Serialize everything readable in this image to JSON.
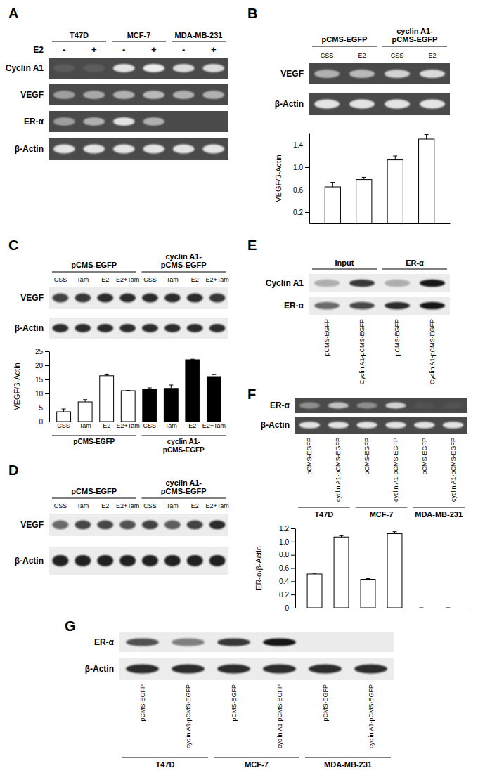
{
  "chart_data": [
    {
      "type": "bar",
      "ylabel": "VEGF/β-Actin",
      "categories": [
        null,
        null,
        null,
        null
      ],
      "values": [
        0.65,
        0.78,
        1.13,
        1.5
      ],
      "errors": [
        0.08,
        0.04,
        0.07,
        0.08
      ],
      "color": "#ffffff",
      "ylim": [
        0,
        1.6
      ],
      "yticks": [
        0.2,
        0.6,
        {
          "value": 1,
          "label": "1.0"
        },
        1.4
      ],
      "tick_labels": "y"
    },
    {
      "type": "bar",
      "ylabel": "VEGF/β-Actin",
      "categories": [
        "CSS",
        "Tam",
        "E2",
        "E2+Tam",
        "CSS",
        "Tam",
        "E2",
        "E2+Tam"
      ],
      "groups": [
        [
          "pCMS-EGFP"
        ],
        [
          "cyclin A1-",
          "pCMS-EGFP"
        ]
      ],
      "values": [
        3.5,
        7,
        16.3,
        11,
        11.5,
        11.8,
        22,
        16
      ],
      "errors": [
        1,
        0.8,
        0.6,
        0.1,
        0.5,
        1.2,
        0.2,
        0.8
      ],
      "colors": [
        "#ffffff",
        "#ffffff",
        "#ffffff",
        "#ffffff",
        "#000000",
        "#000000",
        "#000000",
        "#000000"
      ],
      "ylim": [
        0,
        25
      ],
      "yticks": [
        0,
        5,
        10,
        15,
        20,
        25
      ]
    },
    {
      "type": "bar",
      "ylabel": "ER-α/β-Actin",
      "categories": [
        null,
        null,
        null,
        null,
        null,
        null
      ],
      "values": [
        0.51,
        1.07,
        0.43,
        1.12,
        0,
        0
      ],
      "errors": [
        0.01,
        0.02,
        0.01,
        0.03,
        0,
        0
      ],
      "color": "#ffffff",
      "ylim": [
        0,
        1.2
      ],
      "yticks": [
        0,
        0.2,
        0.4,
        0.6,
        0.8,
        {
          "value": 1,
          "label": "1.0"
        },
        1.2
      ],
      "tick_labels": "y"
    }
  ],
  "figure": {
    "panels": [
      {
        "letter": "A",
        "groups": [
          [
            "T47D"
          ],
          [
            "MCF-7"
          ],
          [
            "MDA-MB-231"
          ]
        ],
        "treatment": "E2",
        "lane_labels": [
          "-",
          "+",
          "-",
          "+",
          "-",
          "+"
        ],
        "rows": [
          {
            "label": "Cyclin A1",
            "bands": [
              0.1,
              0.1,
              0.9,
              0.95,
              0.85,
              0.85
            ]
          },
          {
            "label": "VEGF",
            "bands": [
              0.5,
              0.55,
              0.6,
              0.65,
              0.6,
              0.6
            ]
          },
          {
            "label": "ER-α",
            "bands": [
              0.5,
              0.6,
              0.9,
              0.6,
              0,
              0
            ]
          },
          {
            "label": "β-Actin",
            "bands": [
              0.9,
              0.9,
              0.9,
              0.9,
              0.9,
              0.9
            ]
          }
        ]
      },
      {
        "letter": "B",
        "groups": [
          [
            "pCMS-EGFP"
          ],
          [
            "cyclin A1-",
            "pCMS-EGFP"
          ]
        ],
        "lane_labels": [
          "CSS",
          "E2",
          "CSS",
          "E2"
        ],
        "rows": [
          {
            "label": "VEGF",
            "bands": [
              0.6,
              0.65,
              0.8,
              0.85
            ]
          },
          {
            "label": "β-Actin",
            "bands": [
              0.9,
              0.9,
              0.9,
              0.9
            ]
          }
        ]
      },
      {
        "letter": "C",
        "groups": [
          [
            "pCMS-EGFP"
          ],
          [
            "cyclin A1-",
            "pCMS-EGFP"
          ]
        ],
        "lane_labels": [
          "CSS",
          "Tam",
          "E2",
          "E2+Tam",
          "CSS",
          "Tam",
          "E2",
          "E2+Tam"
        ],
        "rows": [
          {
            "label": "VEGF",
            "bands": [
              0.8,
              0.85,
              0.9,
              0.9,
              0.9,
              0.9,
              0.9,
              0.85
            ]
          },
          {
            "label": "β-Actin",
            "bands": [
              0.9,
              0.9,
              0.9,
              0.9,
              0.9,
              0.9,
              0.9,
              0.9
            ]
          }
        ]
      },
      {
        "letter": "D",
        "groups": [
          [
            "pCMS-EGFP"
          ],
          [
            "cyclin A1-",
            "pCMS-EGFP"
          ]
        ],
        "lane_labels": [
          "CSS",
          "Tam",
          "E2",
          "E2+Tam",
          "CSS",
          "Tam",
          "E2",
          "E2+Tam"
        ],
        "rows": [
          {
            "label": "VEGF",
            "bands": [
              0.6,
              0.75,
              0.75,
              0.7,
              0.8,
              0.65,
              0.8,
              0.9
            ]
          },
          {
            "label": "β-Actin",
            "bands": [
              0.95,
              0.95,
              0.95,
              0.95,
              0.95,
              0.95,
              0.95,
              0.95
            ]
          }
        ]
      },
      {
        "letter": "E",
        "groups": [
          [
            "Input"
          ],
          [
            "ER-α"
          ]
        ],
        "lane_labels": [
          "pCMS-EGFP",
          "Cyclin A1-pCMS-EGFP",
          "pCMS-EGFP",
          "Cyclin A1-pCMS-EGFP"
        ],
        "rows": [
          {
            "label": "Cyclin A1",
            "bands": [
              0.3,
              0.85,
              0.3,
              1.0
            ]
          },
          {
            "label": "ER-α",
            "bands": [
              0.6,
              0.75,
              0.9,
              1.0
            ]
          }
        ]
      },
      {
        "letter": "F",
        "groups": [
          [
            "T47D"
          ],
          [
            "MCF-7"
          ],
          [
            "MDA-MB-231"
          ]
        ],
        "lane_labels": [
          "pCMS-EGFP",
          "cyclin A1-pCMS-EGFP",
          "pCMS-EGFP",
          "cyclin A1-pCMS-EGFP",
          "pCMS-EGFP",
          "cyclin A1-pCMS-EGFP"
        ],
        "rows": [
          {
            "label": "ER-α",
            "bands": [
              0.4,
              0.7,
              0.4,
              0.8,
              0.05,
              0.05
            ]
          },
          {
            "label": "β-Actin",
            "bands": [
              0.9,
              0.9,
              0.9,
              0.9,
              0.9,
              0.9
            ]
          }
        ]
      },
      {
        "letter": "G",
        "groups": [
          [
            "T47D"
          ],
          [
            "MCF-7"
          ],
          [
            "MDA-MB-231"
          ]
        ],
        "lane_labels": [
          "pCMS-EGFP",
          "cyclin A1-pCMS-EGFP",
          "pCMS-EGFP",
          "cyclin A1-pCMS-EGFP",
          "pCMS-EGFP",
          "cyclin A1-pCMS-EGFP"
        ],
        "rows": [
          {
            "label": "ER-α",
            "bands": [
              0.7,
              0.5,
              0.85,
              1.0,
              0,
              0
            ]
          },
          {
            "label": "β-Actin",
            "bands": [
              0.9,
              0.9,
              0.9,
              0.9,
              0.9,
              0.9
            ]
          }
        ]
      }
    ]
  }
}
